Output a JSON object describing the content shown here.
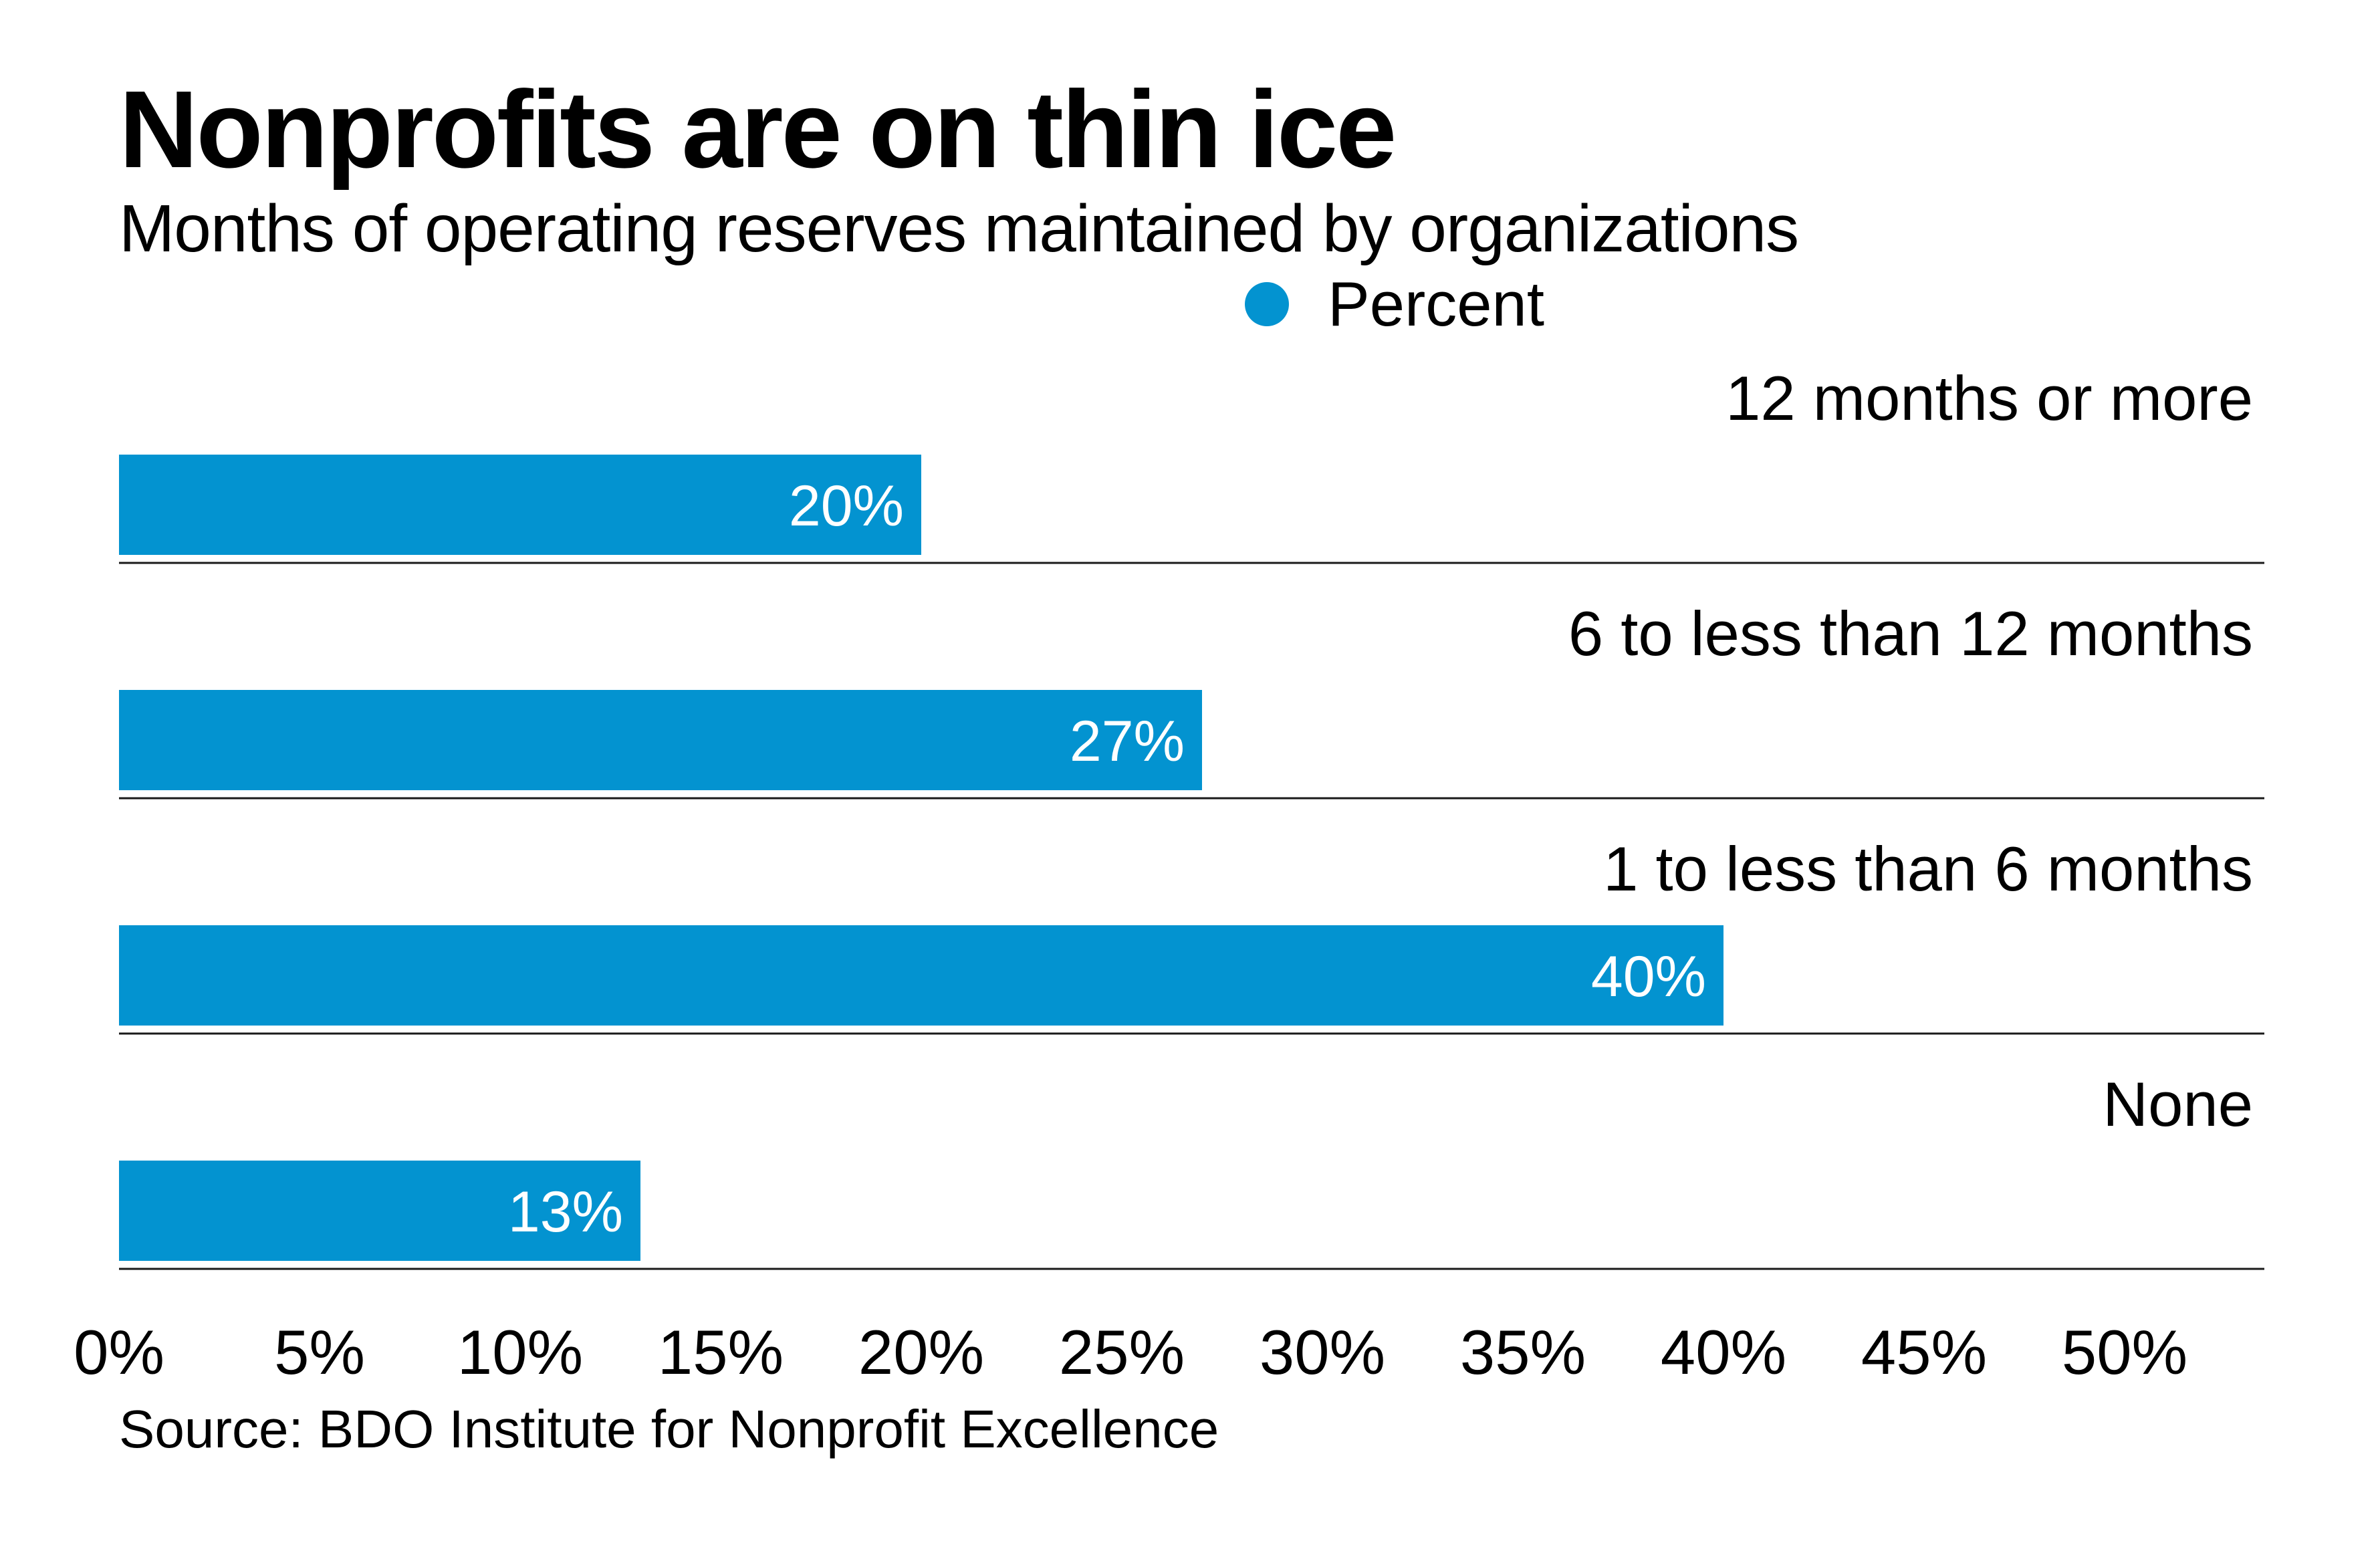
{
  "header": {
    "title": "Nonprofits are on thin ice",
    "subtitle": "Months of operating reserves maintained by organizations"
  },
  "legend": {
    "label": "Percent",
    "color": "#0393d0"
  },
  "footer": {
    "source": "Source: BDO Institute for Nonprofit Excellence"
  },
  "chart_data": {
    "type": "bar",
    "orientation": "horizontal",
    "title": "Nonprofits are on thin ice",
    "subtitle": "Months of operating reserves maintained by organizations",
    "categories": [
      "12 months or more",
      "6 to less than 12 months",
      "1 to less than 6 months",
      "None"
    ],
    "series": [
      {
        "name": "Percent",
        "color": "#0393d0",
        "values": [
          20,
          27,
          40,
          13
        ]
      }
    ],
    "value_labels": [
      "20%",
      "27%",
      "40%",
      "13%"
    ],
    "xlabel": "",
    "ylabel": "",
    "xlim": [
      0,
      50
    ],
    "x_ticks": [
      0,
      5,
      10,
      15,
      20,
      25,
      30,
      35,
      40,
      45,
      50
    ],
    "x_tick_labels": [
      "0%",
      "5%",
      "10%",
      "15%",
      "20%",
      "25%",
      "30%",
      "35%",
      "40%",
      "45%",
      "50%"
    ],
    "grid": false,
    "legend_position": "top-center",
    "source": "Source: BDO Institute for Nonprofit Excellence"
  }
}
